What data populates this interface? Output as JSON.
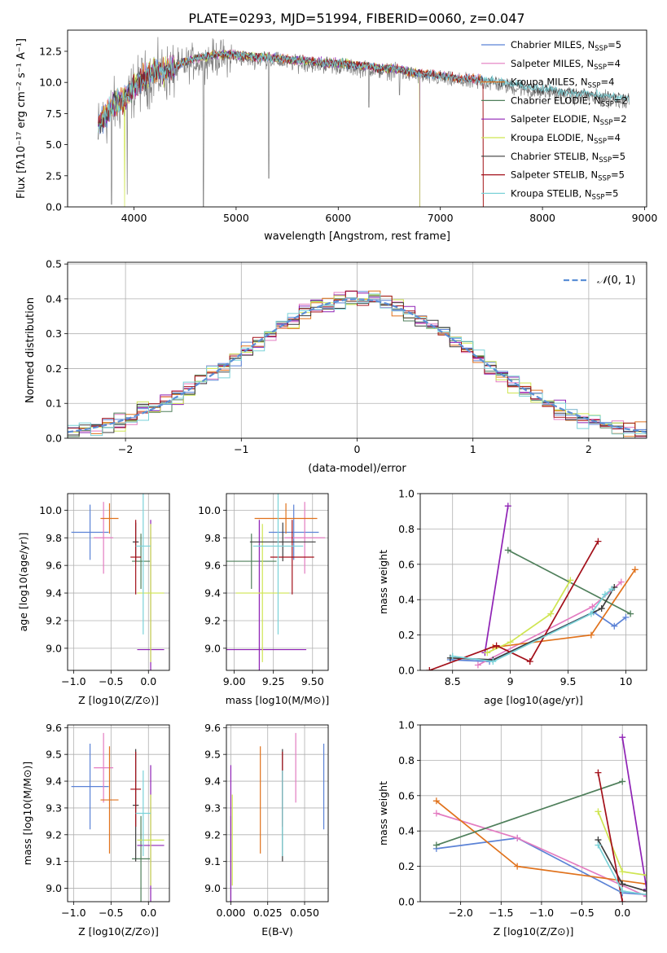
{
  "figure": {
    "title": "PLATE=0293, MJD=51994, FIBERID=0060, z=0.047"
  },
  "colors": {
    "Chabrier MILES": "#5b82d6",
    "Salpeter MILES": "#e37cc1",
    "Kroupa MILES": "#e0721c",
    "Chabrier ELODIE": "#4f7f5b",
    "Salpeter ELODIE": "#8f22b5",
    "Kroupa ELODIE": "#cfe552",
    "Chabrier STELIB": "#3c3c3c",
    "Salpeter STELIB": "#a3101a",
    "Kroupa STELIB": "#7ad2d8",
    "data": "#808080",
    "normal_curve": "#5b8fd6"
  },
  "chart_data": [
    {
      "id": "spectrum",
      "type": "line",
      "xlabel": "wavelength [Angstrom, rest frame]",
      "ylabel": "Flux [fλ10⁻¹⁷ erg cm⁻² s⁻¹ A⁻¹]",
      "xlim": [
        3350,
        9020
      ],
      "ylim": [
        0,
        14.2
      ],
      "xticks": [
        4000,
        5000,
        6000,
        7000,
        8000,
        9000
      ],
      "yticks": [
        0.0,
        2.5,
        5.0,
        7.5,
        10.0,
        12.5
      ],
      "ytick_labels": [
        "0.0",
        "2.5",
        "5.0",
        "7.5",
        "10.0",
        "12.5"
      ],
      "legend_position": "top-right",
      "legend": [
        {
          "model": "Chabrier MILES",
          "label": "Chabrier MILES, N",
          "n": "=5"
        },
        {
          "model": "Salpeter MILES",
          "label": "Salpeter MILES, N",
          "n": "=4"
        },
        {
          "model": "Kroupa MILES",
          "label": "Kroupa MILES, N",
          "n": "=4"
        },
        {
          "model": "Chabrier ELODIE",
          "label": "Chabrier ELODIE, N",
          "n": "=2"
        },
        {
          "model": "Salpeter ELODIE",
          "label": "Salpeter ELODIE, N",
          "n": "=2"
        },
        {
          "model": "Kroupa ELODIE",
          "label": "Kroupa ELODIE, N",
          "n": "=4"
        },
        {
          "model": "Chabrier STELIB",
          "label": "Chabrier STELIB, N",
          "n": "=5"
        },
        {
          "model": "Salpeter STELIB",
          "label": "Salpeter STELIB, N",
          "n": "=5"
        },
        {
          "model": "Kroupa STELIB",
          "label": "Kroupa STELIB, N",
          "n": "=5"
        }
      ],
      "legend_subscript": "SSP",
      "continuum": [
        [
          3650,
          6.4
        ],
        [
          3700,
          6.9
        ],
        [
          3750,
          7.3
        ],
        [
          3800,
          8.0
        ],
        [
          3850,
          8.2
        ],
        [
          3900,
          8.5
        ],
        [
          3950,
          8.9
        ],
        [
          4000,
          9.5
        ],
        [
          4100,
          10.2
        ],
        [
          4200,
          10.6
        ],
        [
          4300,
          10.7
        ],
        [
          4400,
          11.0
        ],
        [
          4500,
          11.4
        ],
        [
          4600,
          11.7
        ],
        [
          4700,
          11.8
        ],
        [
          4800,
          12.0
        ],
        [
          4900,
          12.0
        ],
        [
          5000,
          12.0
        ],
        [
          5100,
          11.9
        ],
        [
          5200,
          11.8
        ],
        [
          5300,
          11.8
        ],
        [
          5400,
          11.7
        ],
        [
          5500,
          11.6
        ],
        [
          5600,
          11.5
        ],
        [
          5700,
          11.5
        ],
        [
          5800,
          11.4
        ],
        [
          5900,
          11.3
        ],
        [
          6000,
          11.3
        ],
        [
          6100,
          11.2
        ],
        [
          6200,
          11.1
        ],
        [
          6300,
          11.1
        ],
        [
          6400,
          10.9
        ],
        [
          6500,
          10.9
        ],
        [
          6600,
          10.8
        ],
        [
          6700,
          10.6
        ],
        [
          6800,
          10.5
        ],
        [
          6900,
          10.4
        ],
        [
          7000,
          10.3
        ],
        [
          7100,
          10.2
        ],
        [
          7200,
          10.1
        ],
        [
          7300,
          10.0
        ],
        [
          7400,
          10.0
        ],
        [
          7500,
          9.9
        ],
        [
          7600,
          9.8
        ],
        [
          7700,
          9.6
        ],
        [
          7800,
          9.5
        ],
        [
          7900,
          9.3
        ],
        [
          8000,
          9.2
        ],
        [
          8100,
          9.2
        ],
        [
          8200,
          9.0
        ],
        [
          8300,
          8.9
        ],
        [
          8400,
          8.9
        ],
        [
          8500,
          8.8
        ],
        [
          8600,
          8.7
        ],
        [
          8700,
          8.6
        ],
        [
          8800,
          8.5
        ],
        [
          8850,
          8.5
        ]
      ],
      "data_dips": [
        [
          3780,
          0.2
        ],
        [
          3935,
          1.0
        ],
        [
          4680,
          0.0
        ],
        [
          5320,
          2.3
        ],
        [
          6300,
          8.0
        ],
        [
          6600,
          9.0
        ]
      ],
      "model_cutoffs": {
        "Kroupa ELODIE": 6800,
        "Salpeter ELODIE": 6800,
        "Chabrier ELODIE": 6800,
        "Salpeter STELIB": 7420,
        "Kroupa MILES": 7420,
        "Salpeter MILES": 7420,
        "Chabrier MILES": 7420
      },
      "model_dips": [
        [
          "Kroupa ELODIE",
          3910,
          0.0
        ],
        [
          "Kroupa ELODIE",
          6800,
          0.0
        ]
      ]
    },
    {
      "id": "residuals",
      "type": "step",
      "xlabel": "(data-model)/error",
      "ylabel": "Normed distribution",
      "xlim": [
        -2.5,
        2.5
      ],
      "ylim": [
        0,
        0.505
      ],
      "xticks": [
        -2,
        -1,
        0,
        1,
        2
      ],
      "xtick_labels": [
        "−2",
        "−1",
        "0",
        "1",
        "2"
      ],
      "yticks": [
        0.0,
        0.1,
        0.2,
        0.3,
        0.4,
        0.5
      ],
      "legend_position": "top-right",
      "legend_label": "(0, 1)",
      "bin_width": 0.1
    },
    {
      "id": "age_vs_Z",
      "type": "errorbar",
      "xlabel": "Z [log10(Z/Z⊙)]",
      "ylabel": "age [log10(age/yr)]",
      "xlim": [
        -1.08,
        0.28
      ],
      "ylim": [
        8.84,
        10.12
      ],
      "xticks": [
        -1.0,
        -0.5,
        0.0
      ],
      "xtick_labels": [
        "−1.0",
        "−0.5",
        "0.0"
      ],
      "yticks": [
        9.0,
        9.2,
        9.4,
        9.6,
        9.8,
        10.0
      ],
      "points": [
        {
          "model": "Chabrier MILES",
          "x": -0.78,
          "xerr": 0.25,
          "y": 9.84,
          "yerr": 0.2
        },
        {
          "model": "Salpeter MILES",
          "x": -0.6,
          "xerr": 0.13,
          "y": 9.8,
          "yerr": 0.26
        },
        {
          "model": "Kroupa MILES",
          "x": -0.52,
          "xerr": 0.12,
          "y": 9.94,
          "yerr": 0.11
        },
        {
          "model": "Chabrier ELODIE",
          "x": -0.1,
          "xerr": 0.12,
          "y": 9.63,
          "yerr": 0.2
        },
        {
          "model": "Salpeter ELODIE",
          "x": 0.03,
          "xerr": 0.18,
          "y": 8.99,
          "yerr": 0.94
        },
        {
          "model": "Kroupa ELODIE",
          "x": 0.03,
          "xerr": 0.18,
          "y": 9.4,
          "yerr": 0.5
        },
        {
          "model": "Chabrier STELIB",
          "x": -0.17,
          "xerr": 0.04,
          "y": 9.77,
          "yerr": 0.14
        },
        {
          "model": "Salpeter STELIB",
          "x": -0.17,
          "xerr": 0.07,
          "y": 9.66,
          "yerr": 0.27
        },
        {
          "model": "Kroupa STELIB",
          "x": -0.07,
          "xerr": 0.1,
          "y": 9.74,
          "yerr": 0.64
        }
      ]
    },
    {
      "id": "age_vs_mass",
      "type": "errorbar",
      "xlabel": "mass [log10(M/M⊙)]",
      "ylabel": "",
      "xlim": [
        8.95,
        9.6
      ],
      "ylim": [
        8.84,
        10.12
      ],
      "xticks": [
        9.0,
        9.25,
        9.5
      ],
      "xtick_labels": [
        "9.00",
        "9.25",
        "9.50"
      ],
      "yticks": [
        9.0,
        9.2,
        9.4,
        9.6,
        9.8,
        10.0
      ],
      "points": [
        {
          "model": "Chabrier MILES",
          "x": 9.38,
          "xerr": 0.16,
          "y": 9.84,
          "yerr": 0.2
        },
        {
          "model": "Salpeter MILES",
          "x": 9.45,
          "xerr": 0.13,
          "y": 9.8,
          "yerr": 0.26
        },
        {
          "model": "Kroupa MILES",
          "x": 9.33,
          "xerr": 0.2,
          "y": 9.94,
          "yerr": 0.11
        },
        {
          "model": "Chabrier ELODIE",
          "x": 9.11,
          "xerr": 0.16,
          "y": 9.63,
          "yerr": 0.2
        },
        {
          "model": "Salpeter ELODIE",
          "x": 9.16,
          "xerr": 0.3,
          "y": 8.99,
          "yerr": 0.94
        },
        {
          "model": "Kroupa ELODIE",
          "x": 9.18,
          "xerr": 0.17,
          "y": 9.4,
          "yerr": 0.5
        },
        {
          "model": "Chabrier STELIB",
          "x": 9.31,
          "xerr": 0.21,
          "y": 9.77,
          "yerr": 0.14
        },
        {
          "model": "Salpeter STELIB",
          "x": 9.37,
          "xerr": 0.14,
          "y": 9.66,
          "yerr": 0.27
        },
        {
          "model": "Kroupa STELIB",
          "x": 9.28,
          "xerr": 0.16,
          "y": 9.74,
          "yerr": 0.64
        }
      ]
    },
    {
      "id": "mass_weight_vs_age",
      "type": "line",
      "xlabel": "age  [log10(age/yr)]",
      "ylabel": "mass weight",
      "xlim": [
        8.22,
        10.18
      ],
      "ylim": [
        0,
        1.0
      ],
      "xticks": [
        8.5,
        9.0,
        9.5,
        10.0
      ],
      "yticks": [
        0.0,
        0.2,
        0.4,
        0.6,
        0.8,
        1.0
      ],
      "series": [
        {
          "model": "Chabrier MILES",
          "x": [
            8.48,
            8.82,
            9.72,
            9.9,
            10.0
          ],
          "y": [
            0.06,
            0.05,
            0.33,
            0.25,
            0.3
          ]
        },
        {
          "model": "Salpeter MILES",
          "x": [
            8.72,
            9.71,
            9.96
          ],
          "y": [
            0.03,
            0.36,
            0.5
          ]
        },
        {
          "model": "Kroupa MILES",
          "x": [
            8.85,
            9.7,
            10.08
          ],
          "y": [
            0.13,
            0.2,
            0.57
          ]
        },
        {
          "model": "Chabrier ELODIE",
          "x": [
            8.98,
            10.04
          ],
          "y": [
            0.68,
            0.32
          ]
        },
        {
          "model": "Salpeter ELODIE",
          "x": [
            8.78,
            8.98
          ],
          "y": [
            0.1,
            0.93
          ]
        },
        {
          "model": "Kroupa ELODIE",
          "x": [
            8.8,
            9.0,
            9.35,
            9.52
          ],
          "y": [
            0.1,
            0.16,
            0.32,
            0.51
          ]
        },
        {
          "model": "Chabrier STELIB",
          "x": [
            8.48,
            8.85,
            9.79,
            9.9
          ],
          "y": [
            0.07,
            0.06,
            0.35,
            0.47
          ]
        },
        {
          "model": "Salpeter STELIB",
          "x": [
            8.3,
            8.88,
            9.17,
            9.76
          ],
          "y": [
            0.0,
            0.14,
            0.05,
            0.73
          ]
        },
        {
          "model": "Kroupa STELIB",
          "x": [
            8.5,
            8.85,
            9.7,
            9.82,
            9.88
          ],
          "y": [
            0.08,
            0.05,
            0.32,
            0.43,
            0.46
          ]
        }
      ]
    },
    {
      "id": "mass_vs_Z",
      "type": "errorbar",
      "xlabel": "Z [log10(Z/Z⊙)]",
      "ylabel": "mass [log10(M/M⊙)]",
      "xlim": [
        -1.08,
        0.28
      ],
      "ylim": [
        8.95,
        9.61
      ],
      "xticks": [
        -1.0,
        -0.5,
        0.0
      ],
      "xtick_labels": [
        "−1.0",
        "−0.5",
        "0.0"
      ],
      "yticks": [
        9.0,
        9.1,
        9.2,
        9.3,
        9.4,
        9.5,
        9.6
      ],
      "points": [
        {
          "model": "Chabrier MILES",
          "x": -0.78,
          "xerr": 0.25,
          "y": 9.38,
          "yerr": 0.16
        },
        {
          "model": "Salpeter MILES",
          "x": -0.6,
          "xerr": 0.13,
          "y": 9.45,
          "yerr": 0.13
        },
        {
          "model": "Kroupa MILES",
          "x": -0.52,
          "xerr": 0.12,
          "y": 9.33,
          "yerr": 0.2
        },
        {
          "model": "Chabrier ELODIE",
          "x": -0.1,
          "xerr": 0.12,
          "y": 9.11,
          "yerr": 0.16
        },
        {
          "model": "Salpeter ELODIE",
          "x": 0.03,
          "xerr": 0.18,
          "y": 9.16,
          "yerr": 0.3
        },
        {
          "model": "Kroupa ELODIE",
          "x": 0.03,
          "xerr": 0.18,
          "y": 9.18,
          "yerr": 0.17
        },
        {
          "model": "Chabrier STELIB",
          "x": -0.17,
          "xerr": 0.04,
          "y": 9.31,
          "yerr": 0.21
        },
        {
          "model": "Salpeter STELIB",
          "x": -0.17,
          "xerr": 0.07,
          "y": 9.37,
          "yerr": 0.14
        },
        {
          "model": "Kroupa STELIB",
          "x": -0.07,
          "xerr": 0.1,
          "y": 9.28,
          "yerr": 0.16
        }
      ]
    },
    {
      "id": "mass_vs_ebv",
      "type": "errorbar",
      "xlabel": "E(B-V)",
      "ylabel": "",
      "xlim": [
        -0.003,
        0.066
      ],
      "ylim": [
        8.95,
        9.61
      ],
      "xticks": [
        0.0,
        0.025,
        0.05
      ],
      "xtick_labels": [
        "0.000",
        "0.025",
        "0.050"
      ],
      "yticks": [
        9.0,
        9.1,
        9.2,
        9.3,
        9.4,
        9.5,
        9.6
      ],
      "points": [
        {
          "model": "Chabrier MILES",
          "x": 0.063,
          "xerr": 0,
          "y": 9.38,
          "yerr": 0.16
        },
        {
          "model": "Salpeter MILES",
          "x": 0.044,
          "xerr": 0,
          "y": 9.45,
          "yerr": 0.13
        },
        {
          "model": "Kroupa MILES",
          "x": 0.02,
          "xerr": 0,
          "y": 9.33,
          "yerr": 0.2
        },
        {
          "model": "Chabrier ELODIE",
          "x": 0.0,
          "xerr": 0,
          "y": 9.11,
          "yerr": 0.16
        },
        {
          "model": "Salpeter ELODIE",
          "x": 0.0,
          "xerr": 0,
          "y": 9.16,
          "yerr": 0.3
        },
        {
          "model": "Kroupa ELODIE",
          "x": 0.001,
          "xerr": 0,
          "y": 9.18,
          "yerr": 0.17
        },
        {
          "model": "Chabrier STELIB",
          "x": 0.035,
          "xerr": 0,
          "y": 9.31,
          "yerr": 0.21
        },
        {
          "model": "Salpeter STELIB",
          "x": 0.035,
          "xerr": 0,
          "y": 9.37,
          "yerr": 0.14
        },
        {
          "model": "Kroupa STELIB",
          "x": 0.035,
          "xerr": 0,
          "y": 9.28,
          "yerr": 0.16
        }
      ]
    },
    {
      "id": "mass_weight_vs_Z",
      "type": "line",
      "xlabel": "Z [log10(Z/Z⊙)]",
      "ylabel": "mass weight",
      "xlim": [
        -2.5,
        0.3
      ],
      "ylim": [
        0,
        1.0
      ],
      "xticks": [
        -2.0,
        -1.5,
        -1.0,
        -0.5,
        0.0
      ],
      "xtick_labels": [
        "−2.0",
        "−1.5",
        "−1.0",
        "−0.5",
        "0.0"
      ],
      "yticks": [
        0.0,
        0.2,
        0.4,
        0.6,
        0.8,
        1.0
      ],
      "series": [
        {
          "model": "Chabrier MILES",
          "x": [
            -2.3,
            -1.3,
            0.0,
            0.3
          ],
          "y": [
            0.3,
            0.36,
            0.05,
            0.04
          ]
        },
        {
          "model": "Salpeter MILES",
          "x": [
            -2.3,
            -1.3,
            0.3
          ],
          "y": [
            0.5,
            0.36,
            0.03
          ]
        },
        {
          "model": "Kroupa MILES",
          "x": [
            -2.3,
            -1.3,
            0.3
          ],
          "y": [
            0.57,
            0.2,
            0.1
          ]
        },
        {
          "model": "Chabrier ELODIE",
          "x": [
            -2.3,
            0.0
          ],
          "y": [
            0.32,
            0.68
          ]
        },
        {
          "model": "Salpeter ELODIE",
          "x": [
            0.0,
            0.3
          ],
          "y": [
            0.93,
            0.07
          ]
        },
        {
          "model": "Kroupa ELODIE",
          "x": [
            -0.3,
            0.0,
            0.3
          ],
          "y": [
            0.51,
            0.17,
            0.15
          ]
        },
        {
          "model": "Chabrier STELIB",
          "x": [
            -0.3,
            0.0,
            0.3
          ],
          "y": [
            0.35,
            0.1,
            0.06
          ]
        },
        {
          "model": "Salpeter STELIB",
          "x": [
            -0.3,
            0.0
          ],
          "y": [
            0.73,
            0.0
          ]
        },
        {
          "model": "Kroupa STELIB",
          "x": [
            -0.3,
            0.0,
            0.3
          ],
          "y": [
            0.32,
            0.06,
            0.04
          ]
        }
      ]
    }
  ]
}
